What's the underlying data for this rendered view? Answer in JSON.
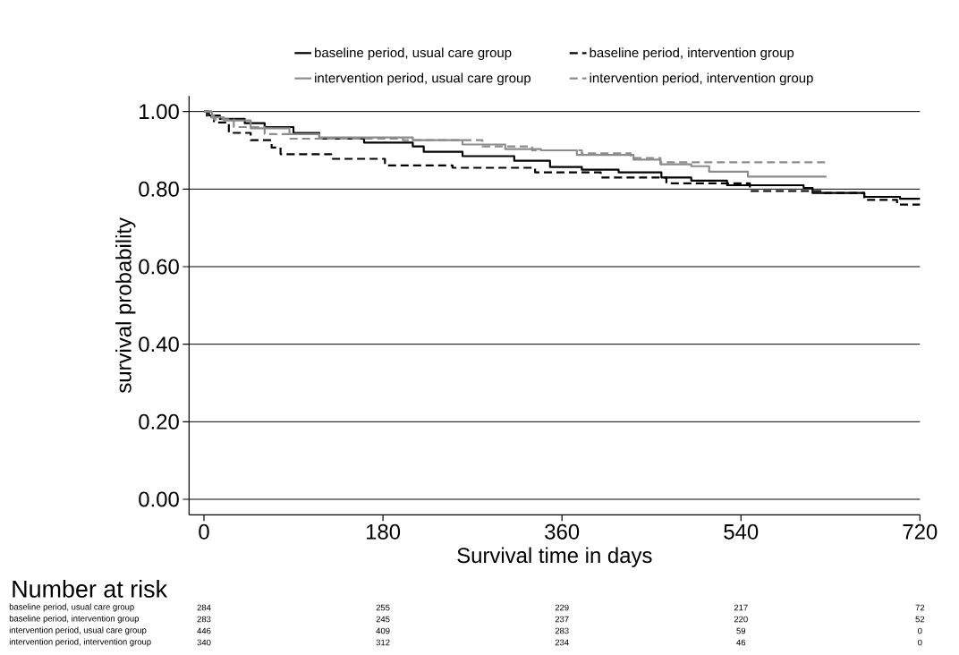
{
  "chart_data": {
    "type": "step",
    "xlabel": "Survival time in days",
    "ylabel": "survival probability",
    "xlim": [
      -15,
      720
    ],
    "xticks": [
      0,
      180,
      360,
      540,
      720
    ],
    "ylim": [
      -0.04,
      1.04
    ],
    "yticks": [
      {
        "value": 0,
        "label": "0.00"
      },
      {
        "value": 0.2,
        "label": "0.20"
      },
      {
        "value": 0.4,
        "label": "0.40"
      },
      {
        "value": 0.6,
        "label": "0.60"
      },
      {
        "value": 0.8,
        "label": "0.80"
      },
      {
        "value": 1,
        "label": "1.00"
      }
    ],
    "grid": "y",
    "legend": "top",
    "marker": "none",
    "series": [
      {
        "name": "baseline period, usual care group",
        "color": "#000000",
        "line_style": "solid",
        "x": [
          0,
          5,
          16,
          41,
          61,
          90,
          116,
          161,
          210,
          221,
          260,
          312,
          348,
          380,
          417,
          460,
          490,
          526,
          603,
          612,
          664,
          700,
          720
        ],
        "values": [
          1.0,
          0.99,
          0.981,
          0.97,
          0.96,
          0.945,
          0.93,
          0.92,
          0.91,
          0.896,
          0.885,
          0.873,
          0.857,
          0.85,
          0.843,
          0.83,
          0.822,
          0.81,
          0.803,
          0.79,
          0.78,
          0.775,
          0.775
        ]
      },
      {
        "name": "baseline period, intervention group",
        "color": "#000000",
        "line_style": "dashed",
        "x": [
          0,
          3,
          10,
          25,
          47,
          68,
          77,
          128,
          182,
          250,
          333,
          399,
          465,
          549,
          620,
          664,
          697,
          720
        ],
        "values": [
          1.0,
          0.985,
          0.972,
          0.945,
          0.926,
          0.907,
          0.89,
          0.878,
          0.861,
          0.855,
          0.843,
          0.83,
          0.815,
          0.795,
          0.79,
          0.772,
          0.76,
          0.76
        ]
      },
      {
        "name": "intervention period, usual care group",
        "color": "#8c8c8c",
        "line_style": "solid",
        "x": [
          0,
          8,
          20,
          47,
          86,
          116,
          210,
          260,
          303,
          339,
          375,
          432,
          459,
          490,
          508,
          547,
          626
        ],
        "values": [
          1.0,
          0.985,
          0.977,
          0.957,
          0.942,
          0.933,
          0.926,
          0.915,
          0.903,
          0.9,
          0.888,
          0.876,
          0.864,
          0.859,
          0.845,
          0.832,
          0.832
        ]
      },
      {
        "name": "intervention period, intervention group",
        "color": "#8c8c8c",
        "line_style": "dashed",
        "x": [
          0,
          10,
          30,
          61,
          86,
          200,
          280,
          330,
          380,
          429,
          459,
          626
        ],
        "values": [
          1.0,
          0.98,
          0.96,
          0.942,
          0.93,
          0.926,
          0.91,
          0.9,
          0.892,
          0.88,
          0.869,
          0.869
        ]
      }
    ],
    "annotations": [
      "Number at risk",
      "baseline period, usual care group",
      "284",
      "255",
      "229",
      "217",
      "72",
      "baseline period, intervention group",
      "283",
      "245",
      "237",
      "220",
      "52",
      "intervention period, usual care group",
      "446",
      "409",
      "283",
      "59",
      "0",
      "intervention period, intervention group",
      "340",
      "312",
      "234",
      "46",
      "0"
    ]
  }
}
